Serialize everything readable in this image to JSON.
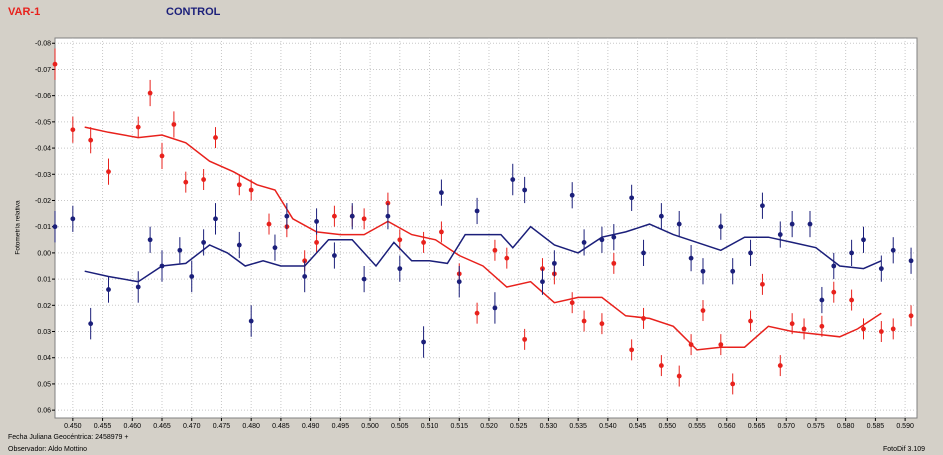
{
  "legend": {
    "var_label": "VAR-1",
    "ctrl_label": "CONTROL"
  },
  "footer": {
    "line1": "Fecha Juliana Geocéntrica: 2458979 +",
    "line2": "Observador: Aldo Mottino",
    "software": "FotoDif 3.109"
  },
  "colors": {
    "var": "#e8211c",
    "control": "#1b1f7a",
    "plot_bg": "#ffffff",
    "grid": "#c8c8c8",
    "panel": "#d4d0c8"
  },
  "chart_data": {
    "type": "scatter",
    "title": "",
    "xlabel": "",
    "ylabel": "Fotometría relativa",
    "xlim": [
      0.447,
      0.592
    ],
    "ylim": [
      -0.082,
      0.063
    ],
    "y_inverted": true,
    "grid": true,
    "x_ticks": [
      "0.450",
      "0.455",
      "0.460",
      "0.465",
      "0.470",
      "0.475",
      "0.480",
      "0.485",
      "0.490",
      "0.495",
      "0.500",
      "0.505",
      "0.510",
      "0.515",
      "0.520",
      "0.525",
      "0.530",
      "0.535",
      "0.540",
      "0.545",
      "0.550",
      "0.555",
      "0.560",
      "0.565",
      "0.570",
      "0.575",
      "0.580",
      "0.585",
      "0.590"
    ],
    "y_ticks": [
      "-0.08",
      "-0.07",
      "-0.06",
      "-0.05",
      "-0.04",
      "-0.03",
      "-0.02",
      "-0.01",
      "0.00",
      "0.01",
      "0.02",
      "0.03",
      "0.04",
      "0.05",
      "0.06"
    ],
    "series": [
      {
        "name": "VAR-1",
        "color": "#e8211c",
        "x": [
          0.447,
          0.45,
          0.453,
          0.456,
          0.461,
          0.463,
          0.465,
          0.467,
          0.469,
          0.472,
          0.474,
          0.478,
          0.48,
          0.483,
          0.486,
          0.489,
          0.491,
          0.494,
          0.497,
          0.499,
          0.503,
          0.505,
          0.509,
          0.512,
          0.515,
          0.518,
          0.521,
          0.523,
          0.526,
          0.529,
          0.531,
          0.534,
          0.536,
          0.539,
          0.541,
          0.544,
          0.546,
          0.549,
          0.552,
          0.554,
          0.556,
          0.559,
          0.561,
          0.564,
          0.566,
          0.569,
          0.571,
          0.573,
          0.576,
          0.578,
          0.581,
          0.583,
          0.586,
          0.588,
          0.591
        ],
        "y": [
          -0.072,
          -0.047,
          -0.043,
          -0.031,
          -0.048,
          -0.061,
          -0.037,
          -0.049,
          -0.027,
          -0.028,
          -0.044,
          -0.026,
          -0.024,
          -0.011,
          -0.01,
          0.003,
          -0.004,
          -0.014,
          -0.014,
          -0.013,
          -0.019,
          -0.005,
          -0.004,
          -0.008,
          0.008,
          0.023,
          -0.001,
          0.002,
          0.033,
          0.006,
          0.008,
          0.019,
          0.026,
          0.027,
          0.004,
          0.037,
          0.025,
          0.043,
          0.047,
          0.035,
          0.022,
          0.035,
          0.05,
          0.026,
          0.012,
          0.043,
          0.027,
          0.029,
          0.028,
          0.015,
          0.018,
          0.029,
          0.03,
          0.029,
          0.024
        ],
        "y_err": [
          0.006,
          0.005,
          0.005,
          0.005,
          0.004,
          0.005,
          0.005,
          0.005,
          0.004,
          0.004,
          0.004,
          0.004,
          0.004,
          0.004,
          0.004,
          0.004,
          0.004,
          0.004,
          0.004,
          0.004,
          0.004,
          0.004,
          0.004,
          0.004,
          0.004,
          0.004,
          0.004,
          0.004,
          0.004,
          0.004,
          0.004,
          0.004,
          0.004,
          0.004,
          0.004,
          0.004,
          0.004,
          0.004,
          0.004,
          0.004,
          0.004,
          0.004,
          0.004,
          0.004,
          0.004,
          0.004,
          0.004,
          0.004,
          0.004,
          0.004,
          0.004,
          0.004,
          0.004,
          0.004,
          0.004
        ],
        "trend_x": [
          0.452,
          0.456,
          0.461,
          0.465,
          0.469,
          0.473,
          0.477,
          0.481,
          0.484,
          0.487,
          0.491,
          0.495,
          0.499,
          0.503,
          0.507,
          0.511,
          0.515,
          0.519,
          0.523,
          0.527,
          0.531,
          0.535,
          0.539,
          0.543,
          0.547,
          0.551,
          0.555,
          0.559,
          0.563,
          0.567,
          0.571,
          0.575,
          0.579,
          0.582,
          0.586
        ],
        "trend_y": [
          -0.048,
          -0.046,
          -0.044,
          -0.045,
          -0.042,
          -0.035,
          -0.031,
          -0.026,
          -0.024,
          -0.013,
          -0.008,
          -0.007,
          -0.007,
          -0.012,
          -0.007,
          -0.005,
          0.001,
          0.005,
          0.013,
          0.011,
          0.019,
          0.017,
          0.017,
          0.024,
          0.025,
          0.028,
          0.037,
          0.036,
          0.036,
          0.028,
          0.03,
          0.031,
          0.032,
          0.029,
          0.023
        ]
      },
      {
        "name": "CONTROL",
        "color": "#1b1f7a",
        "x": [
          0.447,
          0.45,
          0.453,
          0.456,
          0.461,
          0.463,
          0.465,
          0.468,
          0.47,
          0.472,
          0.474,
          0.478,
          0.48,
          0.484,
          0.486,
          0.489,
          0.491,
          0.494,
          0.497,
          0.499,
          0.503,
          0.505,
          0.509,
          0.512,
          0.515,
          0.518,
          0.521,
          0.524,
          0.526,
          0.529,
          0.531,
          0.534,
          0.536,
          0.539,
          0.541,
          0.544,
          0.546,
          0.549,
          0.552,
          0.554,
          0.556,
          0.559,
          0.561,
          0.564,
          0.566,
          0.569,
          0.571,
          0.574,
          0.576,
          0.578,
          0.581,
          0.583,
          0.586,
          0.588,
          0.591
        ],
        "y": [
          -0.01,
          -0.013,
          0.027,
          0.014,
          0.013,
          -0.005,
          0.005,
          -0.001,
          0.009,
          -0.004,
          -0.013,
          -0.003,
          0.026,
          -0.002,
          -0.014,
          0.009,
          -0.012,
          0.001,
          -0.014,
          0.01,
          -0.014,
          0.006,
          0.034,
          -0.023,
          0.011,
          -0.016,
          0.021,
          -0.028,
          -0.024,
          0.011,
          0.004,
          -0.022,
          -0.004,
          -0.005,
          -0.006,
          -0.021,
          0.0,
          -0.014,
          -0.011,
          0.002,
          0.007,
          -0.01,
          0.007,
          0.0,
          -0.018,
          -0.007,
          -0.011,
          -0.011,
          0.018,
          0.005,
          0.0,
          -0.005,
          0.006,
          -0.001,
          0.003
        ],
        "y_err": [
          0.006,
          0.005,
          0.006,
          0.005,
          0.006,
          0.005,
          0.006,
          0.005,
          0.006,
          0.005,
          0.006,
          0.005,
          0.006,
          0.005,
          0.005,
          0.006,
          0.005,
          0.005,
          0.005,
          0.005,
          0.005,
          0.005,
          0.006,
          0.005,
          0.006,
          0.005,
          0.006,
          0.006,
          0.005,
          0.005,
          0.005,
          0.005,
          0.005,
          0.005,
          0.005,
          0.005,
          0.005,
          0.005,
          0.005,
          0.005,
          0.005,
          0.005,
          0.005,
          0.005,
          0.005,
          0.005,
          0.005,
          0.005,
          0.005,
          0.005,
          0.005,
          0.005,
          0.005,
          0.005,
          0.005
        ],
        "trend_x": [
          0.452,
          0.456,
          0.461,
          0.465,
          0.469,
          0.473,
          0.476,
          0.479,
          0.482,
          0.485,
          0.489,
          0.493,
          0.497,
          0.501,
          0.504,
          0.507,
          0.51,
          0.513,
          0.516,
          0.519,
          0.522,
          0.524,
          0.527,
          0.531,
          0.535,
          0.539,
          0.543,
          0.547,
          0.551,
          0.555,
          0.559,
          0.563,
          0.567,
          0.571,
          0.575,
          0.579,
          0.583,
          0.586
        ],
        "trend_y": [
          0.007,
          0.009,
          0.011,
          0.005,
          0.004,
          -0.003,
          0.0,
          0.005,
          0.003,
          0.005,
          0.005,
          -0.005,
          -0.005,
          0.005,
          -0.004,
          0.003,
          0.003,
          0.004,
          -0.007,
          -0.007,
          -0.007,
          -0.002,
          -0.01,
          -0.003,
          0.0,
          -0.006,
          -0.008,
          -0.011,
          -0.007,
          -0.004,
          -0.001,
          -0.006,
          -0.006,
          -0.004,
          -0.002,
          0.005,
          0.006,
          0.003
        ]
      }
    ]
  }
}
